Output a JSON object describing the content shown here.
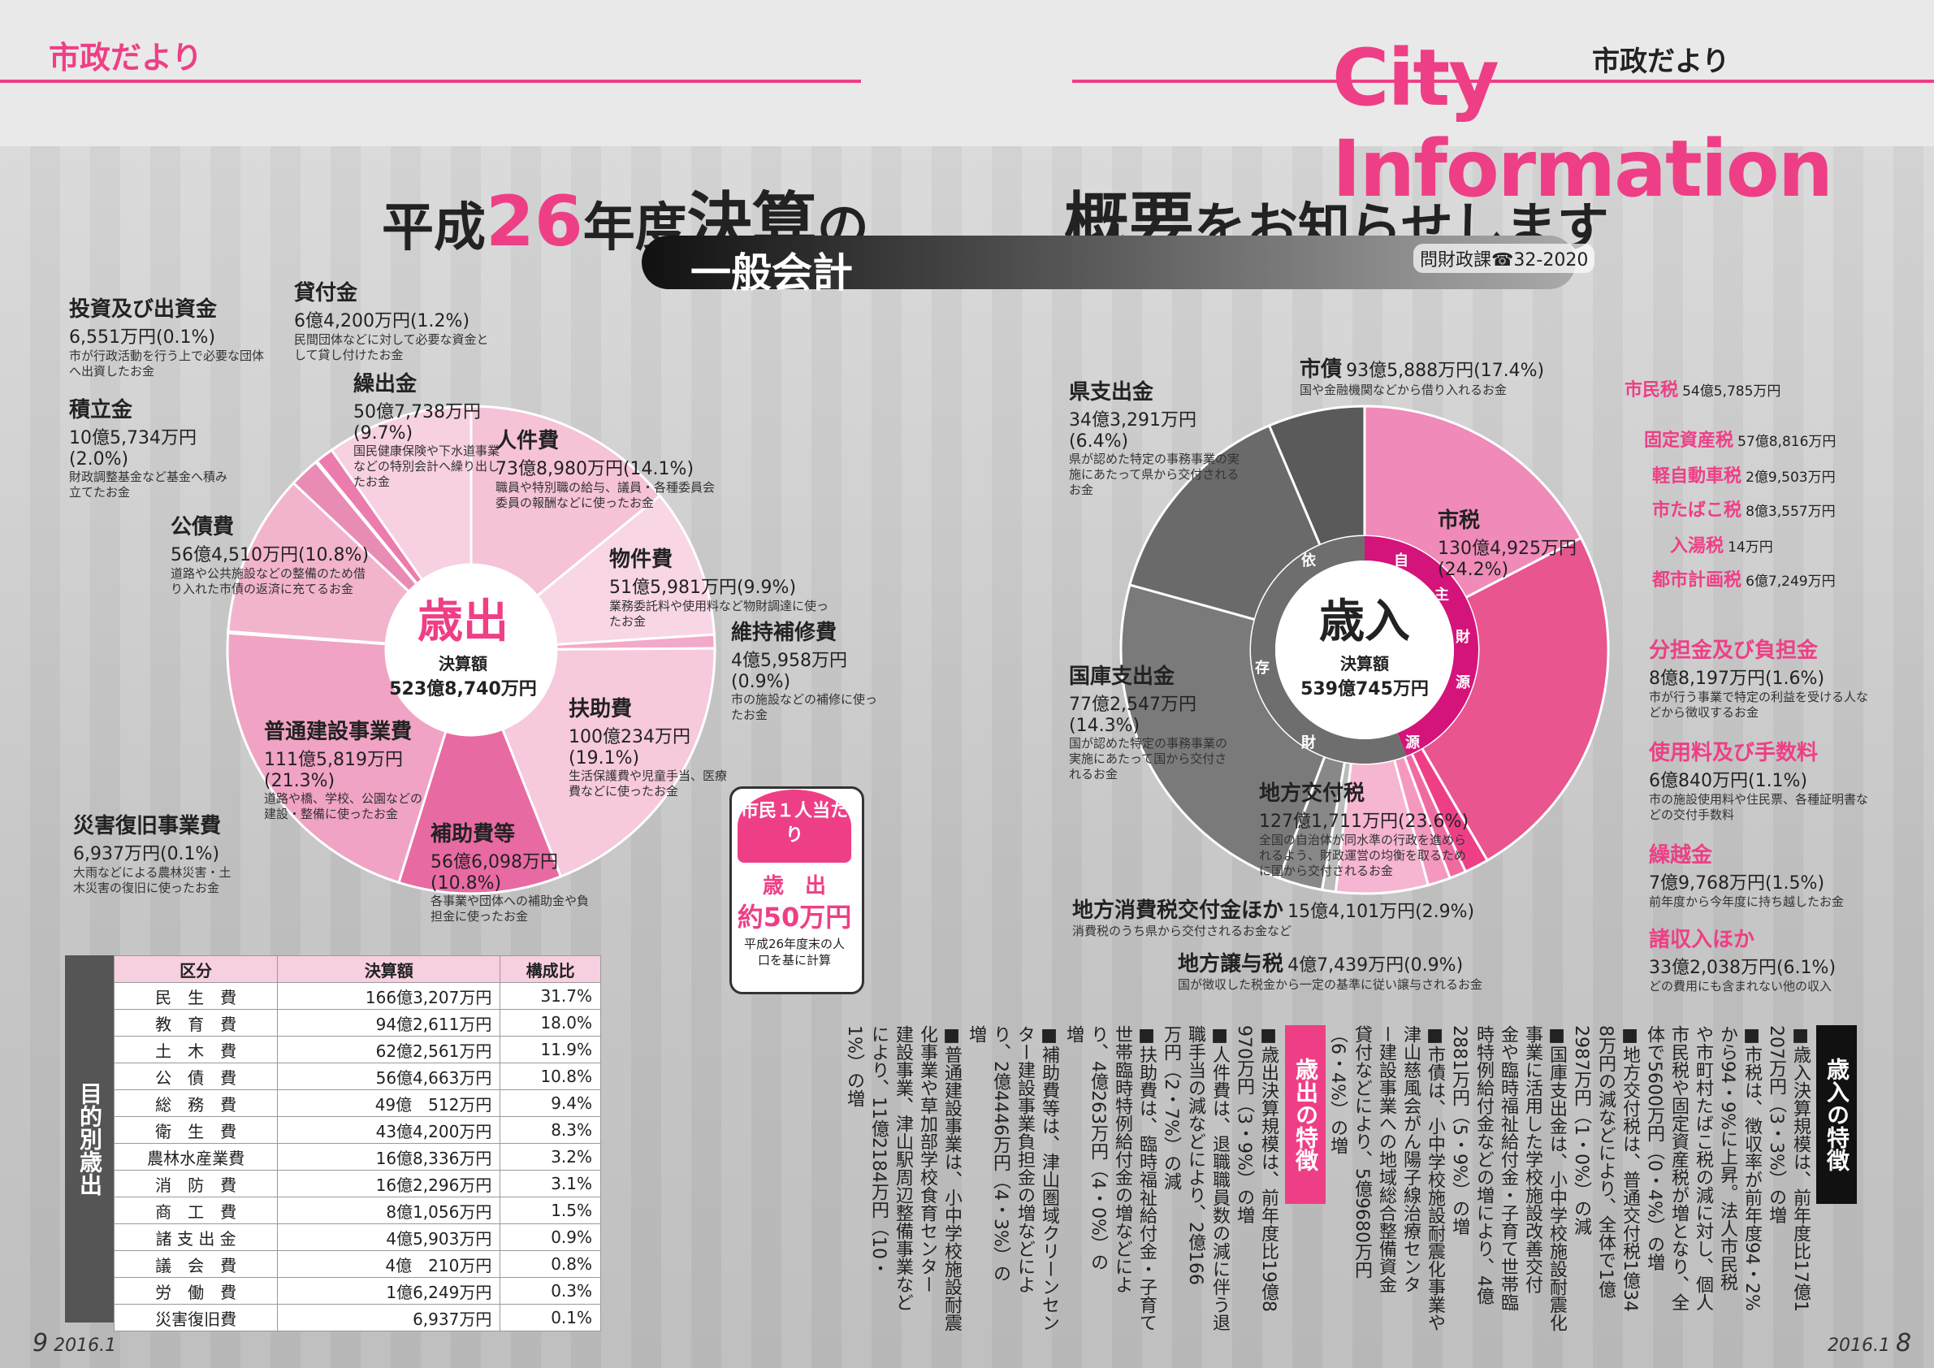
{
  "header": {
    "left_label": "市政だより",
    "right_small": "市政だより",
    "right_logo": "City Information"
  },
  "title": {
    "part1": "平成",
    "num": "26",
    "part2": "年度",
    "part3": "決算",
    "part4": "の",
    "right1": "概要",
    "right2": "をお知らせします"
  },
  "band": {
    "label": "一般会計",
    "dept": "問財政課☎32-2020"
  },
  "expenditure": {
    "center_title": "歳出",
    "center_sub": "決算額",
    "center_amount": "523億8,740万円",
    "items": [
      {
        "name": "人件費",
        "amount": "73億8,980万円(14.1%)",
        "desc": "職員や特別職の給与、議員・各種委員会委員の報酬などに使ったお金"
      },
      {
        "name": "物件費",
        "amount": "51億5,981万円(9.9%)",
        "desc": "業務委託料や使用料など物財調達に使ったお金"
      },
      {
        "name": "維持補修費",
        "amount": "4億5,958万円(0.9%)",
        "desc": "市の施設などの補修に使ったお金"
      },
      {
        "name": "扶助費",
        "amount": "100億234万円(19.1%)",
        "desc": "生活保護費や児童手当、医療費などに使ったお金"
      },
      {
        "name": "補助費等",
        "amount": "56億6,098万円(10.8%)",
        "desc": "各事業や団体への補助金や負担金に使ったお金"
      },
      {
        "name": "普通建設事業費",
        "amount": "111億5,819万円(21.3%)",
        "desc": "道路や橋、学校、公園などの建設・整備に使ったお金"
      },
      {
        "name": "災害復旧事業費",
        "amount": "6,937万円(0.1%)",
        "desc": "大雨などによる農林災害・土木災害の復旧に使ったお金"
      },
      {
        "name": "公債費",
        "amount": "56億4,510万円(10.8%)",
        "desc": "道路や公共施設などの整備のため借り入れた市債の返済に充てるお金"
      },
      {
        "name": "積立金",
        "amount": "10億5,734万円(2.0%)",
        "desc": "財政調整基金など基金へ積み立てたお金"
      },
      {
        "name": "投資及び出資金",
        "amount": "6,551万円(0.1%)",
        "desc": "市が行政活動を行う上で必要な団体へ出資したお金"
      },
      {
        "name": "貸付金",
        "amount": "6億4,200万円(1.2%)",
        "desc": "民間団体などに対して必要な資金として貸し付けたお金"
      },
      {
        "name": "繰出金",
        "amount": "50億7,738万円(9.7%)",
        "desc": "国民健康保険や下水道事業などの特別会計へ繰り出したお金"
      }
    ]
  },
  "revenue": {
    "center_title": "歳入",
    "center_sub": "決算額",
    "center_amount": "539億745万円",
    "ring_left": [
      "依",
      "存",
      "財",
      "源"
    ],
    "ring_right": [
      "自",
      "主",
      "財",
      "源"
    ],
    "items": [
      {
        "name": "市債",
        "amount": "93億5,888万円(17.4%)",
        "desc": "国や金融機関などから借り入れるお金"
      },
      {
        "name": "市税",
        "amount": "130億4,925万円(24.2%)",
        "desc": ""
      },
      {
        "name": "分担金及び負担金",
        "amount": "8億8,197万円(1.6%)",
        "desc": "市が行う事業で特定の利益を受ける人などから徴収するお金"
      },
      {
        "name": "使用料及び手数料",
        "amount": "6億840万円(1.1%)",
        "desc": "市の施設使用料や住民票、各種証明書などの交付手数料"
      },
      {
        "name": "繰越金",
        "amount": "7億9,768万円(1.5%)",
        "desc": "前年度から今年度に持ち越したお金"
      },
      {
        "name": "諸収入ほか",
        "amount": "33億2,038万円(6.1%)",
        "desc": "どの費用にも含まれない他の収入"
      },
      {
        "name": "地方譲与税",
        "amount": "4億7,439万円(0.9%)",
        "desc": "国が徴収した税金から一定の基準に従い譲与されるお金"
      },
      {
        "name": "地方消費税交付金ほか",
        "amount": "15億4,101万円(2.9%)",
        "desc": "消費税のうち県から交付されるお金など"
      },
      {
        "name": "地方交付税",
        "amount": "127億1,711万円(23.6%)",
        "desc": "全国の自治体が同水準の行政を進められるよう、財政運営の均衡を取るために国から交付されるお金"
      },
      {
        "name": "国庫支出金",
        "amount": "77億2,547万円(14.3%)",
        "desc": "国が認めた特定の事務事業の実施にあたって国から交付されるお金"
      },
      {
        "name": "県支出金",
        "amount": "34億3,291万円(6.4%)",
        "desc": "県が認めた特定の事務事業の実施にあたって県から交付されるお金"
      }
    ],
    "tax_breakdown": [
      {
        "name": "市民税",
        "amount": "54億5,785万円"
      },
      {
        "name": "固定資産税",
        "amount": "57億8,816万円"
      },
      {
        "name": "軽自動車税",
        "amount": "2億9,503万円"
      },
      {
        "name": "市たばこ税",
        "amount": "8億3,557万円"
      },
      {
        "name": "入湯税",
        "amount": "14万円"
      },
      {
        "name": "都市計画税",
        "amount": "6億7,249万円"
      }
    ]
  },
  "per_capita": {
    "head": "市民１人当たり",
    "label": "歳　出",
    "amount": "約50万円",
    "note": "平成26年度末の人口を基に計算"
  },
  "table": {
    "side_label": "目的別歳出",
    "headers": [
      "区分",
      "決算額",
      "構成比"
    ],
    "rows": [
      [
        "民　生　費",
        "166億3,207万円",
        "31.7%"
      ],
      [
        "教　育　費",
        "94億2,611万円",
        "18.0%"
      ],
      [
        "土　木　費",
        "62億2,561万円",
        "11.9%"
      ],
      [
        "公　債　費",
        "56億4,663万円",
        "10.8%"
      ],
      [
        "総　務　費",
        "49億　512万円",
        "9.4%"
      ],
      [
        "衛　生　費",
        "43億4,200万円",
        "8.3%"
      ],
      [
        "農林水産業費",
        "16億8,336万円",
        "3.2%"
      ],
      [
        "消　防　費",
        "16億2,296万円",
        "3.1%"
      ],
      [
        "商　工　費",
        "8億1,056万円",
        "1.5%"
      ],
      [
        "諸 支 出 金",
        "4億5,903万円",
        "0.9%"
      ],
      [
        "議　会　費",
        "4億　210万円",
        "0.8%"
      ],
      [
        "労　働　費",
        "1億6,249万円",
        "0.3%"
      ],
      [
        "災害復旧費",
        "6,937万円",
        "0.1%"
      ]
    ]
  },
  "features_revenue": {
    "heading": "歳入の特徴",
    "columns": [
      "■歳入決算規模は、前年度比17億1",
      "207万円（3・3%）の増",
      "■市税は、徴収率が前年度94・2%",
      "から94・9%に上昇。法人市民税",
      "や市町村たばこ税の減に対し、個人",
      "市民税や固定資産税が増となり、全",
      "体で5600万円（0・4%）の増",
      "■地方交付税は、普通交付税1億34",
      "8万円の減などにより、全体で1億",
      "2987万円（1・0%）の減",
      "■国庫支出金は、小中学校施設耐震化",
      "事業に活用した学校施設改善交付",
      "金や臨時福祉給付金・子育て世帯臨",
      "時特例給付金などの増により、4億",
      "2881万円（5・9%）の増",
      "■市債は、小中学校施設耐震化事業や",
      "津山慈風会がん陽子線治療センタ",
      "ー建設事業への地域総合整備資金",
      "貸付などにより、5億9680万円",
      "（6・4%）の増"
    ]
  },
  "features_expenditure": {
    "heading": "歳出の特徴",
    "columns": [
      "■歳出決算規模は、前年度比19億8",
      "970万円（3・9%）の増",
      "■人件費は、退職職員数の減に伴う退",
      "職手当の減などにより、2億166",
      "万円（2・7%）の減",
      "■扶助費は、臨時福祉給付金・子育て",
      "世帯臨時特例給付金の増などによ",
      "り、4億263万円（4・0%）の",
      "増",
      "■補助費等は、津山圏域クリーンセン",
      "ター建設事業負担金の増などによ",
      "り、2億4446万円（4・3%）の",
      "増",
      "■普通建設事業は、小中学校施設耐震",
      "化事業や草加部学校食育センター",
      "建設事業、津山駅周辺整備事業など",
      "により、11億2184万円（10・",
      "1%）の増"
    ]
  },
  "footer": {
    "left": "9",
    "left_date": "2016.1",
    "right_date": "2016.1",
    "right": "8"
  }
}
